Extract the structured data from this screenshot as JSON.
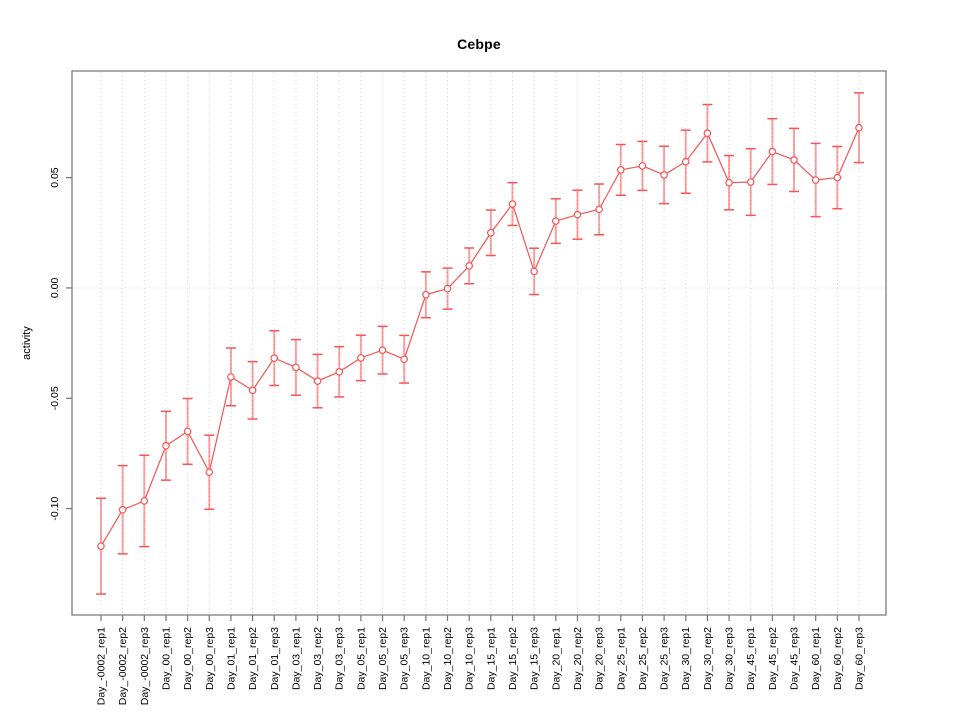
{
  "chart_data": {
    "type": "line",
    "title": "Cebpe",
    "xlabel": "",
    "ylabel": "activity",
    "legend": "none",
    "grid": {
      "vertical_dotted_per_category": true,
      "horizontal_dotted_at_zero": true
    },
    "ylim": [
      -0.1482,
      0.0983
    ],
    "yticks": [
      {
        "value": 0.05,
        "label": "0.05"
      },
      {
        "value": 0.0,
        "label": "0.00"
      },
      {
        "value": -0.05,
        "label": "-0.05"
      },
      {
        "value": -0.1,
        "label": "-0.10"
      }
    ],
    "categories": [
      "Day_-0002_rep1",
      "Day_-0002_rep2",
      "Day_-0002_rep3",
      "Day_00_rep1",
      "Day_00_rep2",
      "Day_00_rep3",
      "Day_01_rep1",
      "Day_01_rep2",
      "Day_01_rep3",
      "Day_03_rep1",
      "Day_03_rep2",
      "Day_03_rep3",
      "Day_05_rep1",
      "Day_05_rep2",
      "Day_05_rep3",
      "Day_10_rep1",
      "Day_10_rep2",
      "Day_10_rep3",
      "Day_15_rep1",
      "Day_15_rep2",
      "Day_15_rep3",
      "Day_20_rep1",
      "Day_20_rep2",
      "Day_20_rep3",
      "Day_25_rep1",
      "Day_25_rep2",
      "Day_25_rep3",
      "Day_30_rep1",
      "Day_30_rep2",
      "Day_30_rep3",
      "Day_45_rep1",
      "Day_45_rep2",
      "Day_45_rep3",
      "Day_60_rep1",
      "Day_60_rep2",
      "Day_60_rep3"
    ],
    "series": [
      {
        "name": "activity",
        "marker": "open-circle",
        "values": [
          -0.117,
          -0.1005,
          -0.0965,
          -0.0715,
          -0.065,
          -0.0835,
          -0.0403,
          -0.0464,
          -0.0318,
          -0.036,
          -0.0422,
          -0.038,
          -0.0317,
          -0.0282,
          -0.0323,
          -0.0031,
          -0.0003,
          0.01,
          0.025,
          0.038,
          0.0075,
          0.0303,
          0.0332,
          0.0356,
          0.0535,
          0.0553,
          0.0512,
          0.0572,
          0.0701,
          0.0477,
          0.048,
          0.0618,
          0.058,
          0.0489,
          0.05,
          0.0726
        ],
        "errors": [
          0.0217,
          0.02,
          0.0207,
          0.0156,
          0.0149,
          0.0168,
          0.0131,
          0.013,
          0.0124,
          0.0126,
          0.0121,
          0.0114,
          0.0103,
          0.0108,
          0.0108,
          0.0104,
          0.0093,
          0.0081,
          0.0103,
          0.0097,
          0.0105,
          0.0101,
          0.0111,
          0.0115,
          0.0115,
          0.0111,
          0.013,
          0.0143,
          0.013,
          0.0123,
          0.0151,
          0.0149,
          0.0143,
          0.0166,
          0.0141,
          0.0158
        ]
      }
    ],
    "colors": {
      "series": "#f75454",
      "series_light": "rgba(247,84,84,0.55)",
      "grid": "#d6d6d6",
      "axis": "#737373",
      "text": "#000000",
      "background": "#ffffff"
    }
  }
}
